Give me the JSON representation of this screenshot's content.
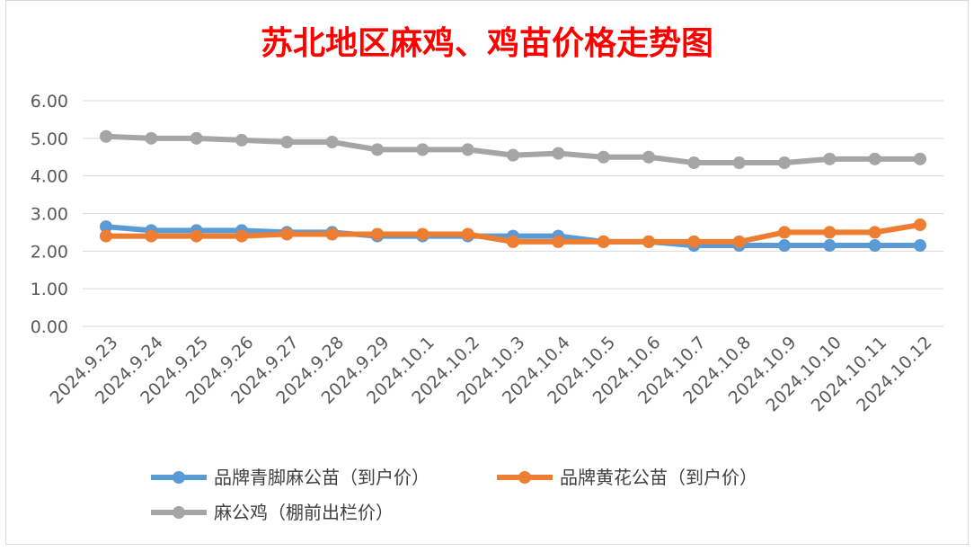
{
  "chart_data": {
    "type": "line",
    "title": "苏北地区麻鸡、鸡苗价格走势图",
    "xlabel": "",
    "ylabel": "",
    "ylim": [
      0,
      6
    ],
    "yticks": [
      "0.00",
      "1.00",
      "2.00",
      "3.00",
      "4.00",
      "5.00",
      "6.00"
    ],
    "grid": true,
    "legend_position": "bottom",
    "categories": [
      "2024.9.23",
      "2024.9.24",
      "2024.9.25",
      "2024.9.26",
      "2024.9.27",
      "2024.9.28",
      "2024.9.29",
      "2024.10.1",
      "2024.10.2",
      "2024.10.3",
      "2024.10.4",
      "2024.10.5",
      "2024.10.6",
      "2024.10.7",
      "2024.10.8",
      "2024.10.9",
      "2024.10.10",
      "2024.10.11",
      "2024.10.12"
    ],
    "series": [
      {
        "name": "品牌青脚麻公苗（到户价）",
        "color": "#5b9bd5",
        "values": [
          2.65,
          2.55,
          2.55,
          2.55,
          2.5,
          2.5,
          2.4,
          2.4,
          2.4,
          2.4,
          2.4,
          2.25,
          2.25,
          2.15,
          2.15,
          2.15,
          2.15,
          2.15,
          2.15
        ]
      },
      {
        "name": "品牌黄花公苗（到户价）",
        "color": "#ed7d31",
        "values": [
          2.4,
          2.4,
          2.4,
          2.4,
          2.45,
          2.45,
          2.45,
          2.45,
          2.45,
          2.25,
          2.25,
          2.25,
          2.25,
          2.25,
          2.25,
          2.5,
          2.5,
          2.5,
          2.7
        ]
      },
      {
        "name": "麻公鸡（棚前出栏价）",
        "color": "#a5a5a5",
        "values": [
          5.05,
          5.0,
          5.0,
          4.95,
          4.9,
          4.9,
          4.7,
          4.7,
          4.7,
          4.55,
          4.6,
          4.5,
          4.5,
          4.35,
          4.35,
          4.35,
          4.45,
          4.45,
          4.45
        ]
      }
    ]
  }
}
